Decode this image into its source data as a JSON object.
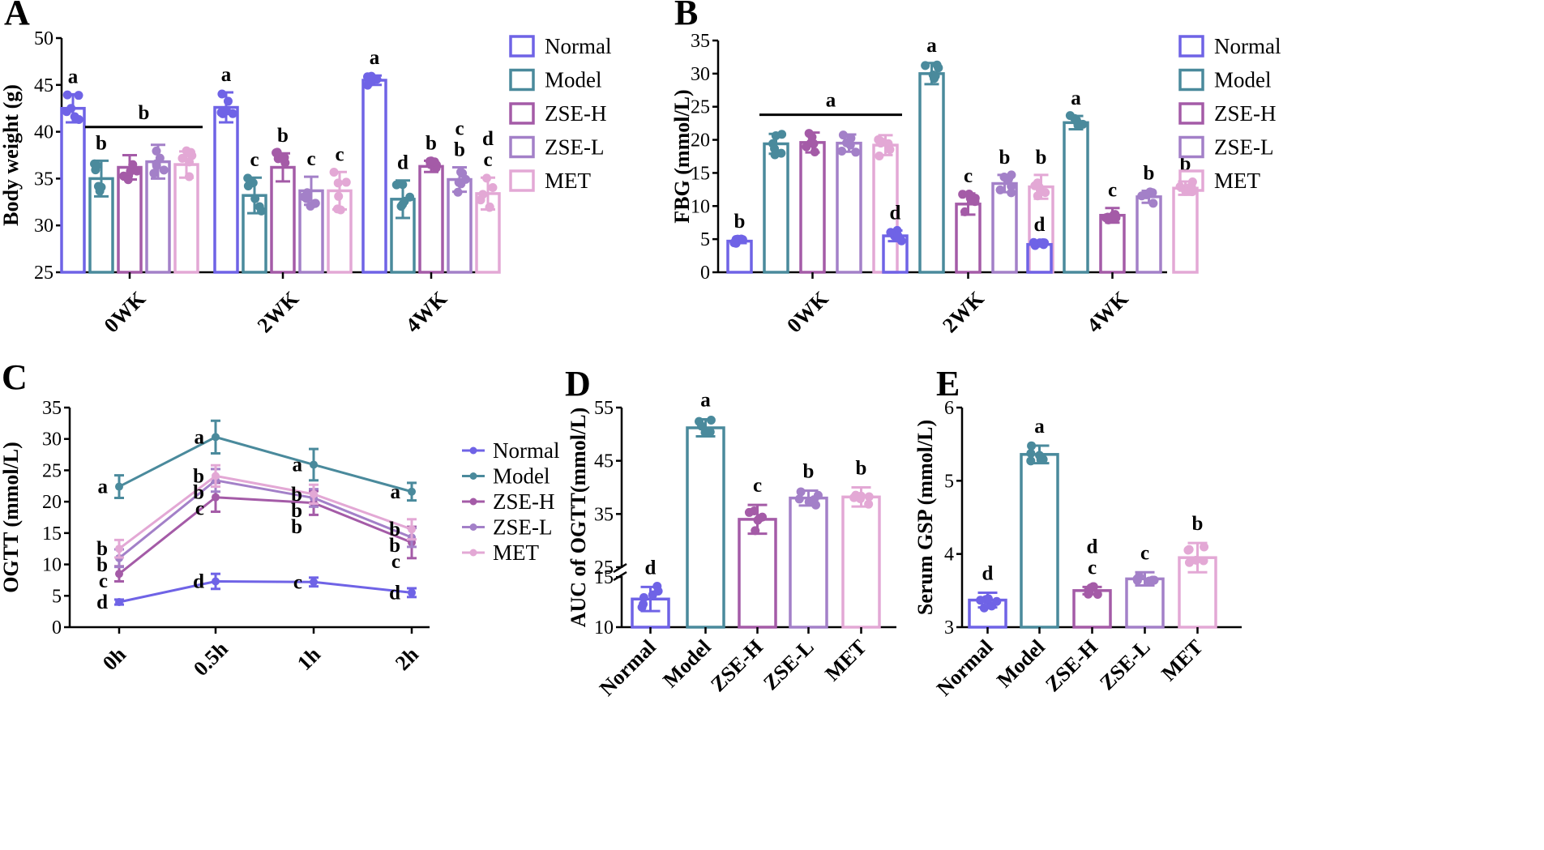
{
  "groups": [
    "Normal",
    "Model",
    "ZSE-H",
    "ZSE-L",
    "MET"
  ],
  "colors": [
    "#6f63e6",
    "#4a8a9c",
    "#a45ba7",
    "#a380c8",
    "#e3a8d5"
  ],
  "chart_data": [
    {
      "id": "A",
      "panel_label": "A",
      "type": "bar",
      "ylabel": "Body weight (g)",
      "ylim": [
        25,
        50
      ],
      "yticks": [
        "25",
        "30",
        "35",
        "40",
        "45",
        "50"
      ],
      "categories": [
        "0WK",
        "2WK",
        "4WK"
      ],
      "series": [
        {
          "name": "Normal",
          "values": [
            42.5,
            42.6,
            45.5
          ],
          "errors": [
            1.5,
            1.6,
            0.5
          ]
        },
        {
          "name": "Model",
          "values": [
            35.0,
            33.2,
            32.8
          ],
          "errors": [
            1.9,
            1.9,
            2.0
          ]
        },
        {
          "name": "ZSE-H",
          "values": [
            36.2,
            36.2,
            36.3
          ],
          "errors": [
            1.3,
            1.5,
            0.6
          ]
        },
        {
          "name": "ZSE-L",
          "values": [
            36.8,
            33.7,
            34.9
          ],
          "errors": [
            1.8,
            1.5,
            1.3
          ]
        },
        {
          "name": "MET",
          "values": [
            36.5,
            33.7,
            33.4
          ],
          "errors": [
            1.4,
            2.0,
            1.7
          ]
        }
      ],
      "annotations": [
        [
          "a",
          "b",
          "",
          "",
          ""
        ],
        [
          "a",
          "c",
          "b",
          "c",
          "c"
        ],
        [
          "a",
          "d",
          "b",
          "c b",
          "d c"
        ]
      ],
      "bracket": {
        "category": 0,
        "label": "b"
      },
      "legend": "right"
    },
    {
      "id": "B",
      "panel_label": "B",
      "type": "bar",
      "ylabel": "FBG (mmol/L)",
      "ylim": [
        0,
        35
      ],
      "yticks": [
        "0",
        "5",
        "10",
        "15",
        "20",
        "25",
        "30",
        "35"
      ],
      "categories": [
        "0WK",
        "2WK",
        "4WK"
      ],
      "series": [
        {
          "name": "Normal",
          "values": [
            4.7,
            5.5,
            4.2
          ],
          "errors": [
            0.3,
            0.8,
            0.3
          ]
        },
        {
          "name": "Model",
          "values": [
            19.4,
            30.0,
            22.6
          ],
          "errors": [
            1.5,
            1.6,
            1.0
          ]
        },
        {
          "name": "ZSE-H",
          "values": [
            19.6,
            10.3,
            8.6
          ],
          "errors": [
            1.5,
            1.6,
            1.1
          ]
        },
        {
          "name": "ZSE-L",
          "values": [
            19.5,
            13.4,
            11.4
          ],
          "errors": [
            1.3,
            1.3,
            0.9
          ]
        },
        {
          "name": "MET",
          "values": [
            19.2,
            12.9,
            12.7
          ],
          "errors": [
            1.5,
            1.8,
            1.0
          ]
        }
      ],
      "annotations": [
        [
          "b",
          "",
          "",
          "",
          ""
        ],
        [
          "d",
          "a",
          "c",
          "b",
          "b"
        ],
        [
          "d",
          "a",
          "c",
          "b",
          "b"
        ]
      ],
      "bracket": {
        "category": 0,
        "label": "a"
      },
      "legend": "right"
    },
    {
      "id": "C",
      "panel_label": "C",
      "type": "line",
      "ylabel": "OGTT (mmol/L)",
      "ylim": [
        0,
        35
      ],
      "yticks": [
        "0",
        "5",
        "10",
        "15",
        "20",
        "25",
        "30",
        "35"
      ],
      "categories": [
        "0h",
        "0.5h",
        "1h",
        "2h"
      ],
      "series": [
        {
          "name": "Normal",
          "values": [
            4.0,
            7.3,
            7.2,
            5.5
          ],
          "errors": [
            0.4,
            1.2,
            0.7,
            0.7
          ]
        },
        {
          "name": "Model",
          "values": [
            22.4,
            30.3,
            25.9,
            21.6
          ],
          "errors": [
            1.8,
            2.6,
            2.5,
            1.4
          ]
        },
        {
          "name": "ZSE-H",
          "values": [
            8.5,
            20.7,
            19.8,
            13.5
          ],
          "errors": [
            1.2,
            2.3,
            1.9,
            2.5
          ]
        },
        {
          "name": "ZSE-L",
          "values": [
            11.0,
            23.4,
            20.6,
            14.3
          ],
          "errors": [
            1.4,
            1.8,
            1.4,
            1.5
          ]
        },
        {
          "name": "MET",
          "values": [
            12.5,
            24.1,
            21.2,
            15.6
          ],
          "errors": [
            1.4,
            1.7,
            1.5,
            1.6
          ]
        }
      ],
      "point_labels": [
        [
          "d",
          "a",
          "c",
          "b",
          "b"
        ],
        [
          "d",
          "a",
          "c",
          "b",
          "b"
        ],
        [
          "c",
          "a",
          "b",
          "b",
          "b"
        ],
        [
          "d",
          "a",
          "c",
          "b",
          "b"
        ]
      ],
      "legend": "right"
    },
    {
      "id": "D",
      "panel_label": "D",
      "type": "bar",
      "ylabel": "AUC of OGTT(mmol/L)",
      "ylim": [
        10,
        55
      ],
      "axis_break": [
        15,
        25
      ],
      "yticks": [
        "10",
        "15",
        "25",
        "35",
        "45",
        "55"
      ],
      "categories": [
        "Normal",
        "Model",
        "ZSE-H",
        "ZSE-L",
        "MET"
      ],
      "values": [
        12.8,
        51.2,
        34.0,
        38.0,
        38.2
      ],
      "errors": [
        1.2,
        1.6,
        2.7,
        1.4,
        1.8
      ],
      "annotations": [
        "d",
        "a",
        "c",
        "b",
        "b"
      ]
    },
    {
      "id": "E",
      "panel_label": "E",
      "type": "bar",
      "ylabel": "Serum GSP (mmol/L)",
      "ylim": [
        3,
        6
      ],
      "yticks": [
        "3",
        "4",
        "5",
        "6"
      ],
      "categories": [
        "Normal",
        "Model",
        "ZSE-H",
        "ZSE-L",
        "MET"
      ],
      "values": [
        3.37,
        5.36,
        3.5,
        3.66,
        3.95
      ],
      "errors": [
        0.1,
        0.12,
        0.05,
        0.09,
        0.2
      ],
      "annotations": [
        "d",
        "a",
        "d c",
        "c",
        "b"
      ]
    }
  ]
}
